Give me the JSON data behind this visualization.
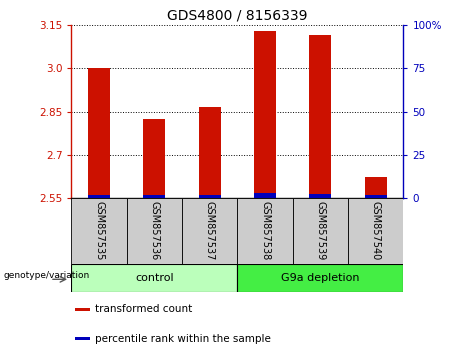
{
  "title": "GDS4800 / 8156339",
  "samples": [
    "GSM857535",
    "GSM857536",
    "GSM857537",
    "GSM857538",
    "GSM857539",
    "GSM857540"
  ],
  "transformed_count": [
    3.0,
    2.825,
    2.865,
    3.13,
    3.115,
    2.625
  ],
  "percentile_rank_pct": [
    2.0,
    2.0,
    2.0,
    3.0,
    2.5,
    2.0
  ],
  "ylim_left": [
    2.55,
    3.15
  ],
  "yticks_left": [
    2.55,
    2.7,
    2.85,
    3.0,
    3.15
  ],
  "ylim_right": [
    0,
    100
  ],
  "yticks_right": [
    0,
    25,
    50,
    75,
    100
  ],
  "red_color": "#cc1100",
  "blue_color": "#0000bb",
  "bar_width": 0.4,
  "groups": [
    {
      "label": "control",
      "indices": [
        0,
        1,
        2
      ],
      "color": "#bbffbb"
    },
    {
      "label": "G9a depletion",
      "indices": [
        3,
        4,
        5
      ],
      "color": "#44ee44"
    }
  ],
  "group_label_prefix": "genotype/variation",
  "legend_items": [
    {
      "label": "transformed count",
      "color": "#cc1100"
    },
    {
      "label": "percentile rank within the sample",
      "color": "#0000bb"
    }
  ],
  "title_fontsize": 10,
  "tick_fontsize": 7.5,
  "sample_fontsize": 7,
  "legend_fontsize": 7.5,
  "group_fontsize": 8
}
